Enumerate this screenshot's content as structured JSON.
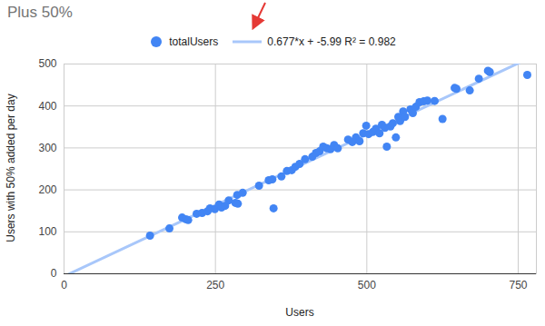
{
  "chart_data": {
    "type": "scatter",
    "title": "Plus 50%",
    "xlabel": "Users",
    "ylabel": "Users with 50% added per day",
    "series": [
      {
        "name": "totalUsers",
        "color": "#4285f4",
        "marker": "circle",
        "x": [
          142,
          174,
          195,
          201,
          205,
          219,
          228,
          237,
          241,
          249,
          256,
          260,
          266,
          272,
          283,
          286,
          287,
          295,
          322,
          338,
          344,
          346,
          359,
          368,
          376,
          382,
          389,
          398,
          410,
          416,
          422,
          428,
          434,
          440,
          446,
          452,
          469,
          476,
          482,
          488,
          494,
          499,
          503,
          510,
          515,
          521,
          525,
          530,
          533,
          539,
          543,
          548,
          552,
          555,
          560,
          563,
          572,
          576,
          581,
          587,
          594,
          600,
          612,
          625,
          645,
          648,
          670,
          685,
          700,
          703,
          765
        ],
        "values": [
          91,
          108,
          134,
          130,
          128,
          143,
          145,
          149,
          156,
          154,
          165,
          158,
          162,
          175,
          169,
          188,
          167,
          193,
          210,
          223,
          225,
          156,
          232,
          245,
          247,
          255,
          262,
          273,
          279,
          288,
          292,
          303,
          299,
          297,
          307,
          299,
          320,
          314,
          325,
          316,
          335,
          353,
          333,
          338,
          346,
          335,
          355,
          348,
          303,
          351,
          359,
          325,
          374,
          364,
          387,
          374,
          392,
          383,
          398,
          409,
          411,
          413,
          412,
          369,
          443,
          441,
          437,
          465,
          484,
          481,
          474
        ]
      }
    ],
    "trendline": {
      "name": "0.677*x + -5.99 R² = 0.982",
      "color": "#a8c7fa",
      "slope": 0.677,
      "intercept": -5.99,
      "line_style": "solid"
    },
    "xlim": [
      0,
      780
    ],
    "xticks": [
      0,
      250,
      500,
      750
    ],
    "ylim": [
      0,
      500
    ],
    "yticks": [
      0,
      100,
      200,
      300,
      400,
      500
    ],
    "grid": true,
    "legend": "top"
  }
}
